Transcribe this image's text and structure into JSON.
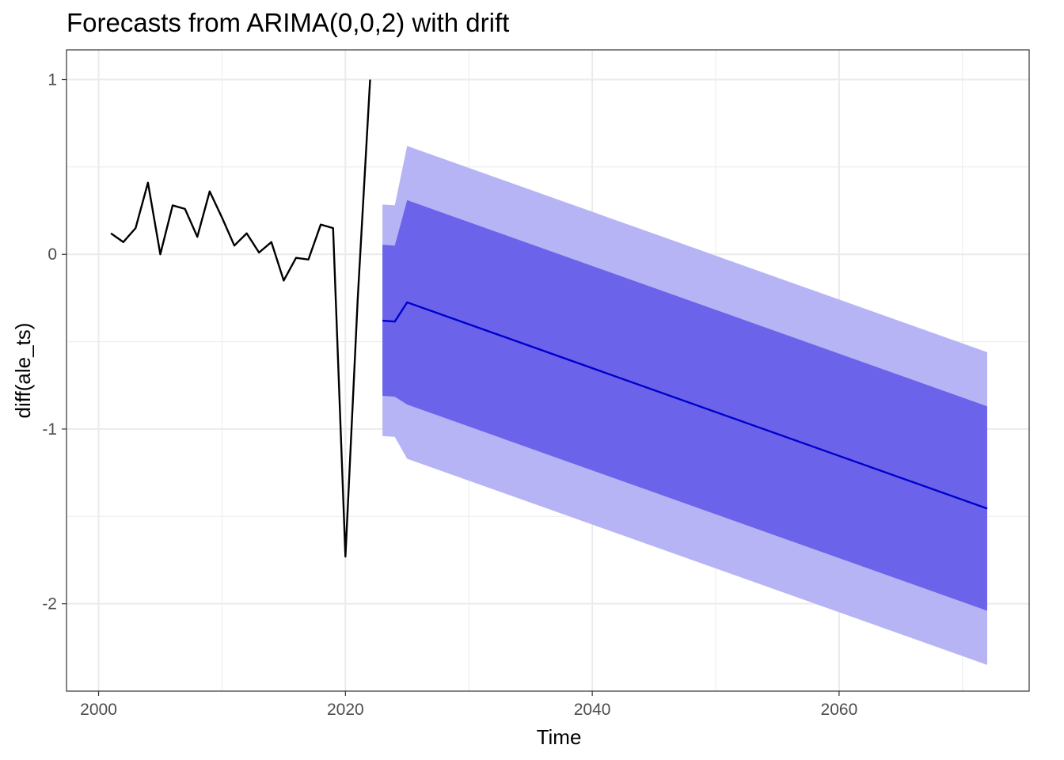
{
  "chart_data": {
    "type": "line",
    "title": "Forecasts from ARIMA(0,0,2) with drift",
    "xlabel": "Time",
    "ylabel": "diff(ale_ts)",
    "xlim": [
      1997.4,
      2075.4
    ],
    "ylim": [
      -2.5,
      1.17
    ],
    "x_ticks": [
      "2000",
      "2020",
      "2040",
      "2060"
    ],
    "y_ticks": [
      "1",
      "0",
      "-1",
      "-2"
    ],
    "grid": true,
    "legend": "none",
    "colors": {
      "observed": "#000000",
      "forecast_mean": "#0000cc",
      "interval_80": "#6b64ea",
      "interval_95": "#b6b4f5",
      "grid": "#ebebeb",
      "panel_border": "#333333"
    },
    "series": [
      {
        "name": "observed",
        "x": [
          2001,
          2002,
          2003,
          2004,
          2005,
          2006,
          2007,
          2008,
          2009,
          2010,
          2011,
          2012,
          2013,
          2014,
          2015,
          2016,
          2017,
          2018,
          2019,
          2020,
          2021,
          2022
        ],
        "values": [
          0.12,
          0.07,
          0.15,
          0.41,
          0.0,
          0.28,
          0.26,
          0.1,
          0.36,
          0.21,
          0.05,
          0.12,
          0.01,
          0.07,
          -0.15,
          -0.02,
          -0.03,
          0.17,
          0.15,
          -1.73,
          -0.25,
          1.0
        ]
      },
      {
        "name": "forecast",
        "x": [
          2023,
          2024,
          2025,
          2072
        ],
        "values": [
          -0.38,
          -0.385,
          -0.275,
          -1.455
        ],
        "lo80": [
          -0.81,
          -0.815,
          -0.86,
          -2.04
        ],
        "hi80": [
          0.055,
          0.05,
          0.31,
          -0.87
        ],
        "lo95": [
          -1.04,
          -1.045,
          -1.17,
          -2.35
        ],
        "hi95": [
          0.285,
          0.28,
          0.62,
          -0.56
        ]
      }
    ]
  }
}
